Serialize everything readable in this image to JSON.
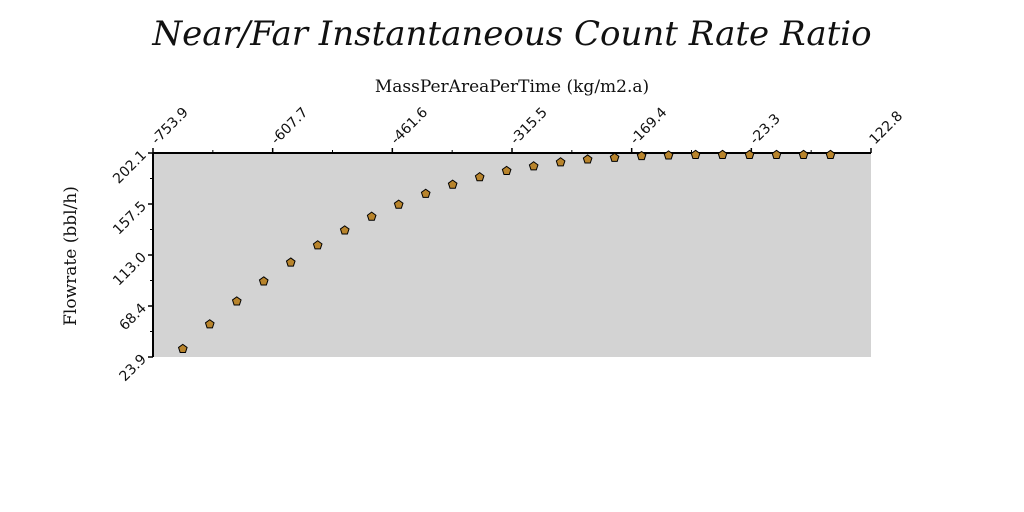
{
  "chart_data": {
    "type": "scatter",
    "title": "Near/Far Instantaneous Count Rate Ratio",
    "xlabel": "MassPerAreaPerTime (kg/m2.a)",
    "ylabel": "Flowrate (bbl/h)",
    "x_axis_position": "top",
    "xlim": [
      -753.9,
      122.8
    ],
    "ylim": [
      23.9,
      202.1
    ],
    "x_ticks": [
      "-753.9",
      "-607.7",
      "-461.6",
      "-315.5",
      "-169.4",
      "-23.3",
      "122.8"
    ],
    "y_ticks": [
      "23.9",
      "68.4",
      "113.0",
      "157.5",
      "202.1"
    ],
    "plot_background": "#d3d3d3",
    "marker": "pentagon",
    "marker_color": "#b8842c",
    "marker_edge_color": "#000000",
    "grid": false,
    "legend": "none",
    "series": [
      {
        "x": [
          -717.5,
          -684.6,
          -651.6,
          -618.7,
          -585.7,
          -552.8,
          -519.8,
          -486.9,
          -453.9,
          -420.9,
          -388.0,
          -355.0,
          -322.1,
          -289.1,
          -256.2,
          -223.2,
          -190.3,
          -157.3,
          -124.4,
          -91.4,
          -58.5,
          -25.5,
          7.4,
          40.4,
          73.3
        ],
        "y": [
          31.0,
          52.5,
          72.5,
          90.0,
          106.5,
          121.5,
          134.5,
          146.5,
          157.0,
          166.5,
          174.5,
          181.0,
          186.5,
          190.5,
          194.0,
          196.5,
          198.0,
          199.5,
          200.0,
          200.5,
          200.5,
          200.5,
          200.5,
          200.5,
          200.5
        ]
      }
    ]
  }
}
